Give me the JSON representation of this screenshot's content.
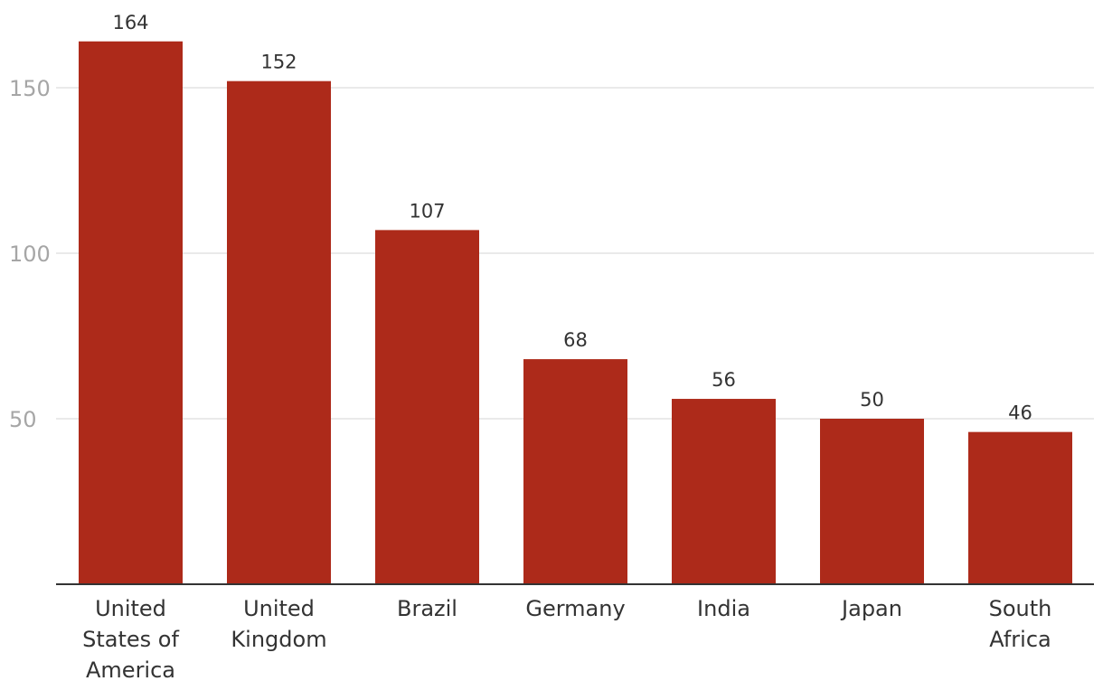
{
  "chart_data": {
    "type": "bar",
    "categories": [
      "United States of America",
      "United Kingdom",
      "Brazil",
      "Germany",
      "India",
      "Japan",
      "South Africa"
    ],
    "category_lines": [
      [
        "United",
        "States of",
        "America"
      ],
      [
        "United",
        "Kingdom"
      ],
      [
        "Brazil"
      ],
      [
        "Germany"
      ],
      [
        "India"
      ],
      [
        "Japan"
      ],
      [
        "South",
        "Africa"
      ]
    ],
    "values": [
      164,
      152,
      107,
      68,
      56,
      50,
      46
    ],
    "value_labels": [
      "164",
      "152",
      "107",
      "68",
      "56",
      "50",
      "46"
    ],
    "title": "",
    "xlabel": "",
    "ylabel": "",
    "ylim": [
      0,
      164
    ],
    "yticks": [
      50,
      100,
      150
    ],
    "ytick_labels": [
      "50",
      "100",
      "150"
    ],
    "grid": true,
    "legend": "none",
    "colors": {
      "bar": "#ad2a1a",
      "grid": "#e3e3e3",
      "baseline": "#333333",
      "tick_text": "#a6a6a6",
      "label_text": "#333333"
    }
  }
}
